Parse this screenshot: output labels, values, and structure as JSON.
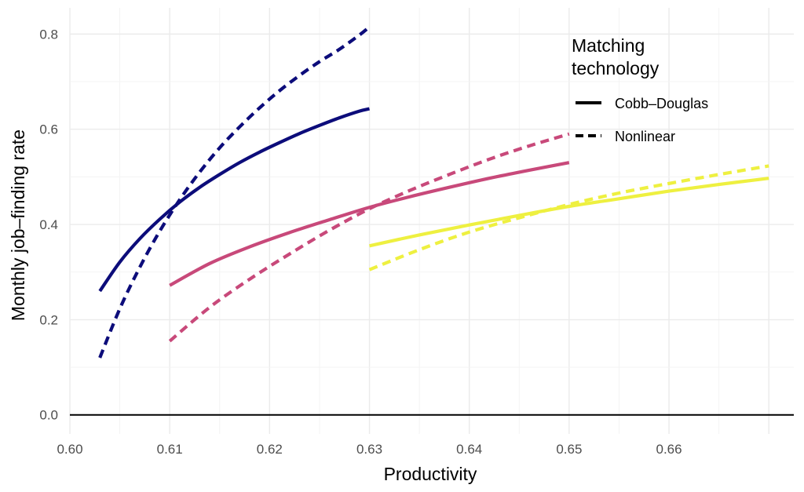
{
  "chart_data": {
    "type": "line",
    "title": "",
    "xlabel": "Productivity",
    "ylabel": "Monthly job–finding rate",
    "xlim": [
      0.6,
      0.6725
    ],
    "ylim": [
      -0.04,
      0.855
    ],
    "x_ticks": [
      0.6,
      0.61,
      0.62,
      0.63,
      0.64,
      0.65,
      0.66
    ],
    "x_tick_labels": [
      "0.60",
      "0.61",
      "0.62",
      "0.63",
      "0.64",
      "0.65",
      "0.66"
    ],
    "y_ticks": [
      0.0,
      0.2,
      0.4,
      0.6,
      0.8
    ],
    "y_tick_labels": [
      "0.0",
      "0.2",
      "0.4",
      "0.6",
      "0.8"
    ],
    "grid": true,
    "legend": {
      "title_lines": [
        "Matching",
        "technology"
      ],
      "placement": "top-right",
      "entries": [
        {
          "label": "Cobb–Douglas",
          "style": "solid"
        },
        {
          "label": "Nonlinear",
          "style": "dashed"
        }
      ]
    },
    "series": [
      {
        "group": "low",
        "technology": "Cobb–Douglas",
        "color": "#0c0c7a",
        "style": "solid",
        "x": [
          0.603,
          0.605,
          0.607,
          0.609,
          0.611,
          0.613,
          0.615,
          0.617,
          0.619,
          0.621,
          0.623,
          0.625,
          0.627,
          0.629,
          0.63
        ],
        "y": [
          0.26,
          0.321,
          0.37,
          0.411,
          0.447,
          0.478,
          0.505,
          0.53,
          0.552,
          0.572,
          0.591,
          0.608,
          0.624,
          0.638,
          0.643
        ]
      },
      {
        "group": "low",
        "technology": "Nonlinear",
        "color": "#0c0c7a",
        "style": "dashed",
        "x": [
          0.603,
          0.605,
          0.607,
          0.609,
          0.611,
          0.613,
          0.615,
          0.617,
          0.619,
          0.621,
          0.623,
          0.625,
          0.627,
          0.629,
          0.63
        ],
        "y": [
          0.12,
          0.223,
          0.31,
          0.386,
          0.452,
          0.51,
          0.561,
          0.605,
          0.645,
          0.681,
          0.713,
          0.742,
          0.768,
          0.798,
          0.815
        ]
      },
      {
        "group": "mid",
        "technology": "Cobb–Douglas",
        "color": "#c8497a",
        "style": "solid",
        "x": [
          0.61,
          0.614,
          0.618,
          0.622,
          0.626,
          0.63,
          0.634,
          0.638,
          0.642,
          0.646,
          0.65
        ],
        "y": [
          0.272,
          0.318,
          0.353,
          0.383,
          0.41,
          0.436,
          0.458,
          0.478,
          0.497,
          0.514,
          0.53
        ]
      },
      {
        "group": "mid",
        "technology": "Nonlinear",
        "color": "#c8497a",
        "style": "dashed",
        "x": [
          0.61,
          0.614,
          0.618,
          0.622,
          0.626,
          0.63,
          0.634,
          0.638,
          0.642,
          0.646,
          0.65
        ],
        "y": [
          0.155,
          0.226,
          0.285,
          0.338,
          0.388,
          0.433,
          0.471,
          0.505,
          0.537,
          0.565,
          0.59
        ]
      },
      {
        "group": "high",
        "technology": "Cobb–Douglas",
        "color": "#eef040",
        "style": "solid",
        "x": [
          0.63,
          0.635,
          0.64,
          0.645,
          0.65,
          0.655,
          0.66,
          0.665,
          0.67
        ],
        "y": [
          0.355,
          0.378,
          0.399,
          0.419,
          0.438,
          0.454,
          0.47,
          0.484,
          0.497
        ]
      },
      {
        "group": "high",
        "technology": "Nonlinear",
        "color": "#eef040",
        "style": "dashed",
        "x": [
          0.63,
          0.635,
          0.64,
          0.645,
          0.65,
          0.655,
          0.66,
          0.665,
          0.67
        ],
        "y": [
          0.305,
          0.347,
          0.384,
          0.414,
          0.442,
          0.466,
          0.486,
          0.505,
          0.523
        ]
      }
    ]
  }
}
